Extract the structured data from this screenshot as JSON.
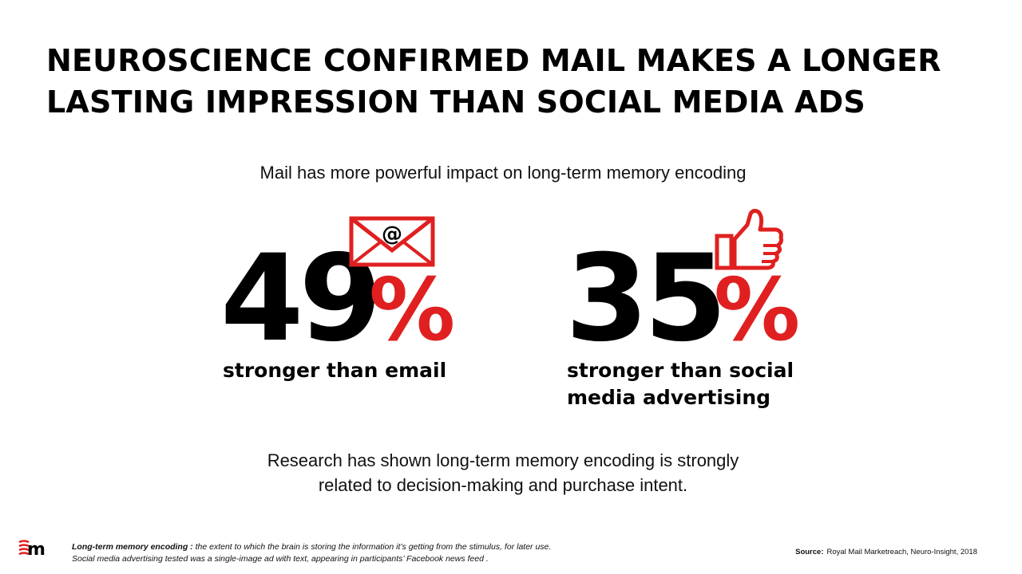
{
  "title": "NEUROSCIENCE CONFIRMED MAIL MAKES A LONGER LASTING IMPRESSION THAN SOCIAL MEDIA ADS",
  "subtitle": "Mail has more powerful impact on long-term memory encoding",
  "stats": [
    {
      "value": "49",
      "unit": "%",
      "label": "stronger than email",
      "icon": "envelope-at-icon"
    },
    {
      "value": "35",
      "unit": "%",
      "label_line1": "stronger than social",
      "label_line2": "media advertising",
      "icon": "thumbs-up-icon"
    }
  ],
  "research": {
    "line1": "Research has shown long-term memory encoding is strongly",
    "line2": "related to decision-making and purchase intent."
  },
  "footnote": {
    "term": "Long-term memory encoding :",
    "definition": " the extent to which the brain is storing the information it’s getting from the stimulus, for later use.",
    "line2": "Social media advertising tested was a single-image ad with text, appearing in participants’  Facebook news feed ."
  },
  "source": {
    "label": "Source:",
    "text": "Royal Mail Marketreach, Neuro-Insight, 2018"
  },
  "colors": {
    "accent": "#e02020",
    "text": "#000000"
  },
  "logo_icon": "marketreach-m-logo-icon"
}
